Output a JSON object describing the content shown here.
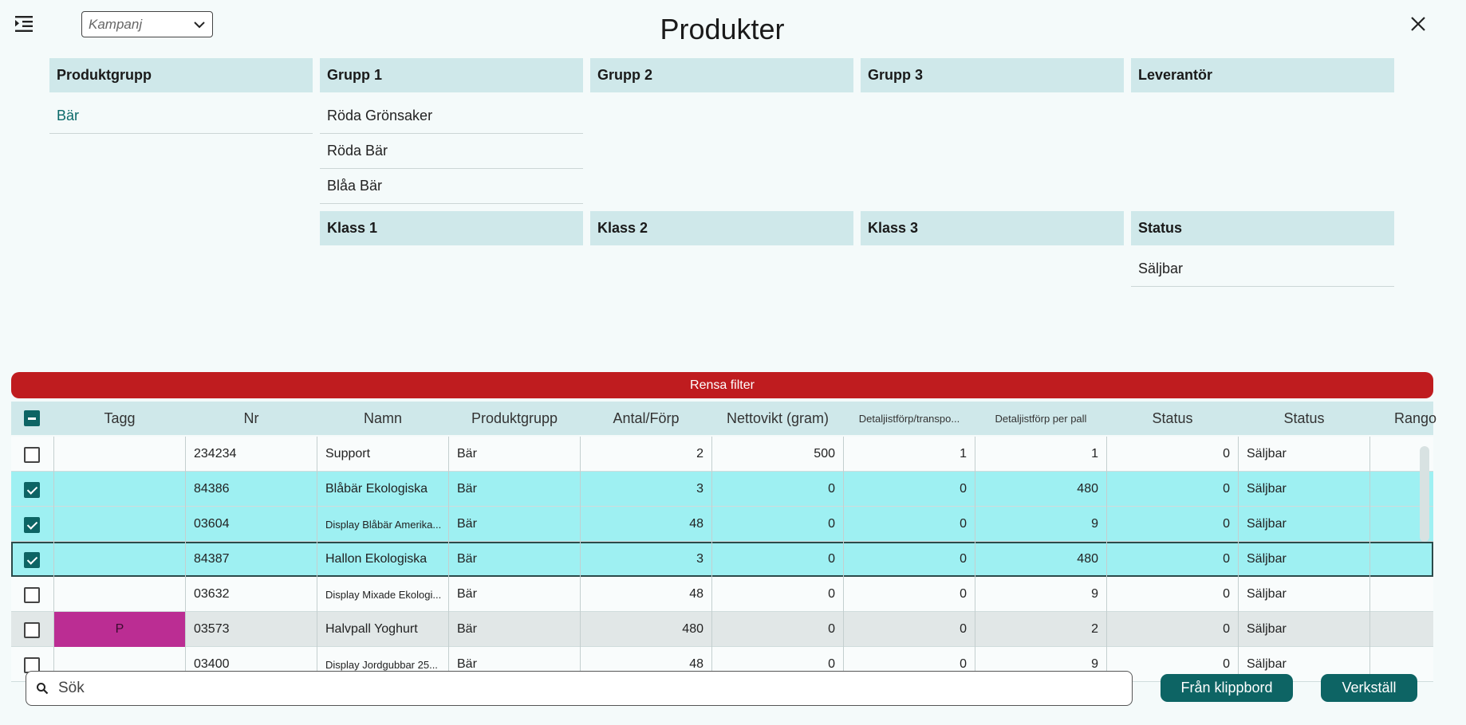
{
  "header": {
    "title": "Produkter",
    "kampanj_placeholder": "Kampanj",
    "menu_icon": "menu-indent-icon",
    "close_icon": "close-icon"
  },
  "filters": {
    "produktgrupp": {
      "label": "Produktgrupp",
      "items": [
        "Bär"
      ],
      "active": "Bär"
    },
    "grupp1": {
      "label": "Grupp 1",
      "items": [
        "Röda Grönsaker",
        "Röda Bär",
        "Blåa Bär"
      ]
    },
    "grupp2": {
      "label": "Grupp 2",
      "items": []
    },
    "grupp3": {
      "label": "Grupp 3",
      "items": []
    },
    "leverantor": {
      "label": "Leverantör",
      "items": []
    },
    "klass1": {
      "label": "Klass 1",
      "items": []
    },
    "klass2": {
      "label": "Klass 2",
      "items": []
    },
    "klass3": {
      "label": "Klass 3",
      "items": []
    },
    "status": {
      "label": "Status",
      "items": [
        "Säljbar"
      ]
    }
  },
  "clear_filter_label": "Rensa filter",
  "table": {
    "columns": [
      "Tagg",
      "Nr",
      "Namn",
      "Produktgrupp",
      "Antal/Förp",
      "Nettovikt (gram)",
      "Detaljistförp/transpo...",
      "Detaljistförp per pall",
      "Status",
      "Status",
      "Rango"
    ],
    "rows": [
      {
        "checked": false,
        "tag": "",
        "nr": "234234",
        "namn": "Support",
        "grupp": "Bär",
        "antal": "2",
        "netto": "500",
        "detalj_transp": "1",
        "detalj_pall": "1",
        "status_num": "0",
        "status": "Säljbar"
      },
      {
        "checked": true,
        "tag": "",
        "nr": "84386",
        "namn": "Blåbär Ekologiska",
        "grupp": "Bär",
        "antal": "3",
        "netto": "0",
        "detalj_transp": "0",
        "detalj_pall": "480",
        "status_num": "0",
        "status": "Säljbar"
      },
      {
        "checked": true,
        "tag": "",
        "nr": "03604",
        "namn": "Display Blåbär Amerika...",
        "grupp": "Bär",
        "antal": "48",
        "netto": "0",
        "detalj_transp": "0",
        "detalj_pall": "9",
        "status_num": "0",
        "status": "Säljbar"
      },
      {
        "checked": true,
        "tag": "",
        "nr": "84387",
        "namn": "Hallon Ekologiska",
        "grupp": "Bär",
        "antal": "3",
        "netto": "0",
        "detalj_transp": "0",
        "detalj_pall": "480",
        "status_num": "0",
        "status": "Säljbar"
      },
      {
        "checked": false,
        "tag": "",
        "nr": "03632",
        "namn": "Display Mixade Ekologi...",
        "grupp": "Bär",
        "antal": "48",
        "netto": "0",
        "detalj_transp": "0",
        "detalj_pall": "9",
        "status_num": "0",
        "status": "Säljbar"
      },
      {
        "checked": false,
        "tag": "P",
        "nr": "03573",
        "namn": "Halvpall Yoghurt",
        "grupp": "Bär",
        "antal": "480",
        "netto": "0",
        "detalj_transp": "0",
        "detalj_pall": "2",
        "status_num": "0",
        "status": "Säljbar"
      },
      {
        "checked": false,
        "tag": "",
        "nr": "03400",
        "namn": "Display Jordgubbar 25...",
        "grupp": "Bär",
        "antal": "48",
        "netto": "0",
        "detalj_transp": "0",
        "detalj_pall": "9",
        "status_num": "0",
        "status": "Säljbar"
      }
    ]
  },
  "search": {
    "placeholder": "Sök",
    "value": ""
  },
  "buttons": {
    "clipboard": "Från klippbord",
    "apply": "Verkställ"
  },
  "colors": {
    "accent": "#0d6464",
    "danger": "#bf1c1f",
    "header_bg": "#cfe8ea",
    "selected_row": "#9ef0f2",
    "tag_p": "#bb2d93"
  }
}
